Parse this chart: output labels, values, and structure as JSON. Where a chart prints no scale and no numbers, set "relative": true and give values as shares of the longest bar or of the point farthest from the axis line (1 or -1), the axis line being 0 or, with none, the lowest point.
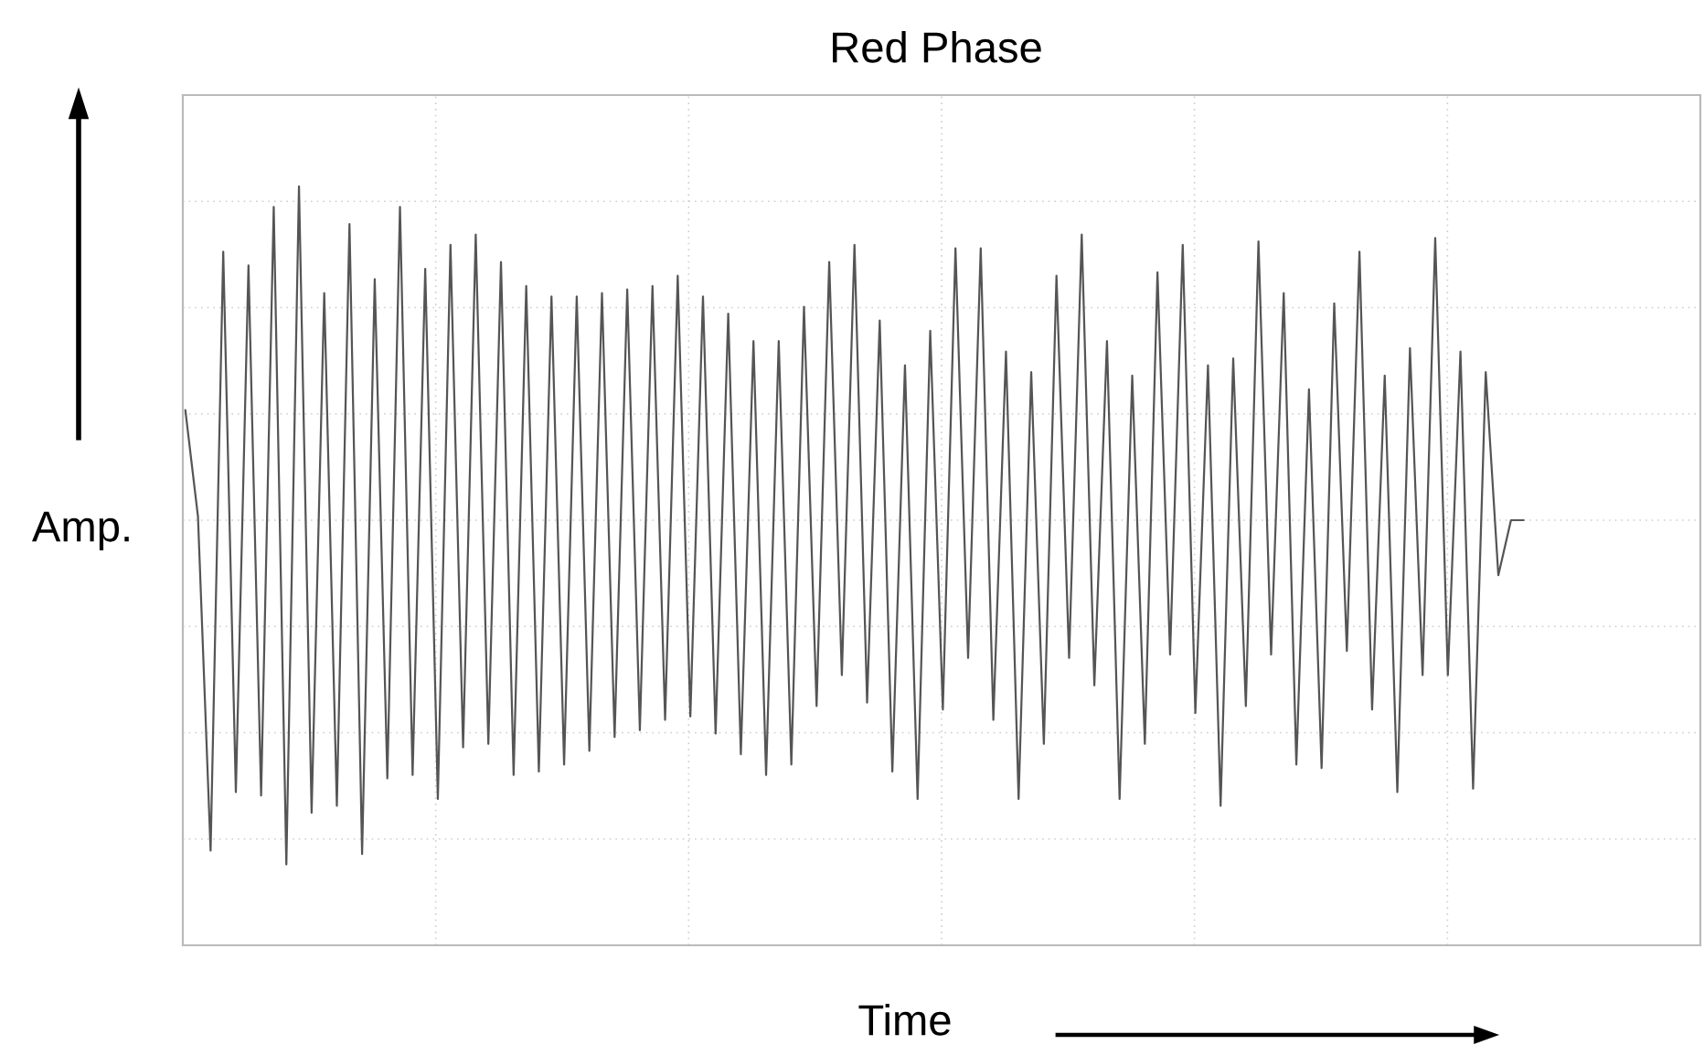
{
  "chart_data": {
    "type": "line",
    "title": "Red Phase",
    "xlabel": "Time",
    "ylabel": "Amp.",
    "relative": true,
    "grid": true,
    "categories": [
      null,
      null,
      null,
      null,
      null,
      null,
      null,
      null,
      null,
      null,
      null,
      null,
      null,
      null,
      null,
      null,
      null,
      null,
      null,
      null,
      null,
      null,
      null,
      null,
      null,
      null,
      null,
      null,
      null,
      null,
      null,
      null,
      null,
      null,
      null,
      null,
      null,
      null,
      null,
      null,
      null,
      null,
      null,
      null,
      null,
      null,
      null,
      null,
      null,
      null,
      null,
      null,
      null,
      null,
      null,
      null,
      null,
      null,
      null,
      null,
      null,
      null,
      null,
      null,
      null,
      null,
      null,
      null,
      null,
      null,
      null,
      null,
      null,
      null,
      null,
      null,
      null,
      null,
      null,
      null,
      null,
      null,
      null,
      null,
      null,
      null,
      null,
      null,
      null,
      null,
      null,
      null,
      null,
      null,
      null,
      null,
      null,
      null,
      null,
      null,
      null,
      null,
      null,
      null,
      null,
      null,
      null
    ],
    "series": [
      {
        "color": "#555555",
        "values": [
          0.32,
          0.01,
          -0.96,
          0.78,
          -0.79,
          0.74,
          -0.8,
          0.91,
          -1.0,
          0.97,
          -0.85,
          0.66,
          -0.83,
          0.86,
          -0.97,
          0.7,
          -0.75,
          0.91,
          -0.74,
          0.73,
          -0.81,
          0.8,
          -0.66,
          0.83,
          -0.65,
          0.75,
          -0.74,
          0.68,
          -0.73,
          0.65,
          -0.71,
          0.65,
          -0.67,
          0.66,
          -0.63,
          0.67,
          -0.61,
          0.68,
          -0.58,
          0.71,
          -0.57,
          0.65,
          -0.62,
          0.6,
          -0.68,
          0.52,
          -0.74,
          0.52,
          -0.71,
          0.62,
          -0.54,
          0.75,
          -0.45,
          0.8,
          -0.53,
          0.58,
          -0.73,
          0.45,
          -0.81,
          0.55,
          -0.55,
          0.79,
          -0.4,
          0.79,
          -0.58,
          0.49,
          -0.81,
          0.43,
          -0.65,
          0.71,
          -0.4,
          0.83,
          -0.48,
          0.52,
          -0.81,
          0.42,
          -0.65,
          0.72,
          -0.39,
          0.8,
          -0.56,
          0.45,
          -0.83,
          0.47,
          -0.54,
          0.81,
          -0.39,
          0.66,
          -0.71,
          0.38,
          -0.72,
          0.63,
          -0.38,
          0.78,
          -0.55,
          0.42,
          -0.79,
          0.5,
          -0.45,
          0.82,
          -0.45,
          0.49,
          -0.78,
          0.43,
          -0.16,
          0.0,
          0.0
        ]
      }
    ]
  }
}
